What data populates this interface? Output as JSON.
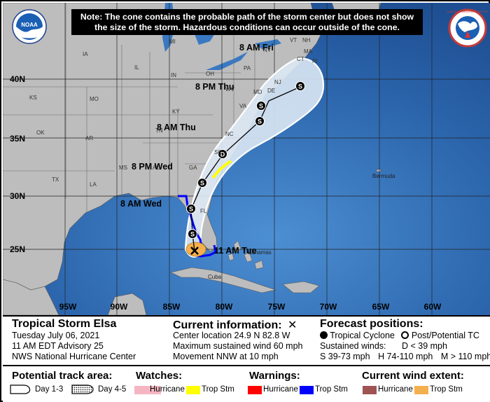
{
  "note": {
    "line1": "Note: The cone contains the probable path of the storm center but does not show",
    "line2": "the size of the storm. Hazardous conditions can occur outside of the cone."
  },
  "logos": {
    "noaa_text": "NOAA",
    "nws_text": "NATIONAL WEATHER SERVICE"
  },
  "lat_labels": [
    "40N",
    "35N",
    "30N",
    "25N"
  ],
  "lon_labels": [
    "95W",
    "90W",
    "85W",
    "80W",
    "75W",
    "70W",
    "65W",
    "60W"
  ],
  "state_labels": [
    "MI",
    "IA",
    "IL",
    "IN",
    "OH",
    "PA",
    "NY",
    "VT",
    "NH",
    "MA",
    "CT",
    "NJ",
    "MD",
    "DE",
    "WV",
    "VA",
    "KS",
    "MO",
    "KY",
    "TN",
    "NC",
    "OK",
    "AR",
    "SC",
    "GA",
    "AL",
    "MS",
    "TX",
    "LA",
    "FL",
    "RI"
  ],
  "place_labels": {
    "bermuda": "Bermuda",
    "bahamas": "Bahamas",
    "cuba": "Cuba"
  },
  "forecast_labels": [
    "8 AM Fri",
    "8 PM Thu",
    "8 AM Thu",
    "8 PM Wed",
    "8 AM Wed",
    "11 AM Tue"
  ],
  "marker_letters": {
    "storm": "S",
    "depression": "D"
  },
  "storm": {
    "name": "Tropical Storm Elsa",
    "date": "Tuesday July 06, 2021",
    "advisory": "11 AM EDT Advisory 25",
    "center": "NWS National Hurricane Center"
  },
  "current": {
    "title": "Current information:",
    "location": "Center location 24.9 N 82.8 W",
    "wind": "Maximum sustained wind 60 mph",
    "movement": "Movement NNW at 10 mph"
  },
  "forecast": {
    "title": "Forecast positions:",
    "tropical": "Tropical Cyclone",
    "post": "Post/Potential TC",
    "winds_label": "Sustained winds:",
    "d_def": "D < 39 mph",
    "s_def": "S 39-73 mph",
    "h_def": "H 74-110 mph",
    "m_def": "M > 110 mph"
  },
  "potential": {
    "title": "Potential track area:",
    "day13": "Day 1-3",
    "day45": "Day 4-5"
  },
  "watches": {
    "title": "Watches:",
    "hurricane": "Hurricane",
    "tropstm": "Trop Stm"
  },
  "warnings": {
    "title": "Warnings:",
    "hurricane": "Hurricane",
    "tropstm": "Trop Stm"
  },
  "windext": {
    "title": "Current wind extent:",
    "hurricane": "Hurricane",
    "tropstm": "Trop Stm"
  },
  "colors": {
    "ocean": "#2f6db4",
    "land": "#bdbdbd",
    "cone": "#dbe8f4",
    "hurricane_watch": "#f4b6c2",
    "ts_watch": "#ffff00",
    "hurricane_warning": "#ff0000",
    "ts_warning": "#0000ff",
    "hurricane_wind": "#a05353",
    "ts_wind": "#f5b04e"
  }
}
